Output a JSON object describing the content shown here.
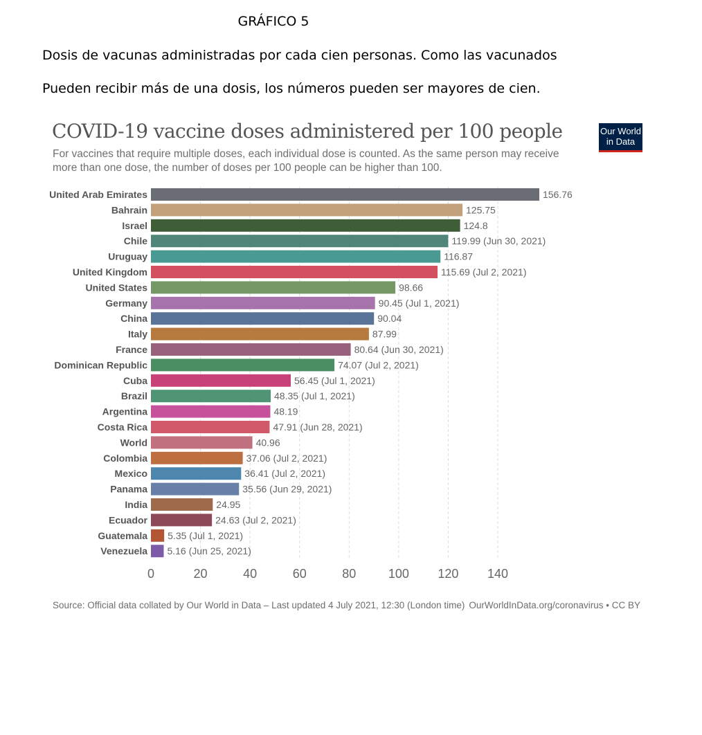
{
  "document": {
    "heading": "GRÁFICO 5",
    "line1": "Dosis de vacunas administradas por cada cien personas. Como las vacunados",
    "line2": "Pueden recibir más de una dosis, los números pueden ser mayores de cien."
  },
  "logo": {
    "line1": "Our World",
    "line2": "in Data"
  },
  "chart_data": {
    "type": "bar",
    "orientation": "horizontal",
    "title": "COVID-19 vaccine doses administered per 100 people",
    "subtitle": "For vaccines that require multiple doses, each individual dose is counted. As the same person may receive more than one dose, the number of doses per 100 people can be higher than 100.",
    "xlabel": "",
    "ylabel": "",
    "xlim": [
      0,
      160
    ],
    "xticks": [
      0,
      20,
      40,
      60,
      80,
      100,
      120,
      140
    ],
    "grid": "vertical dashed",
    "categories": [
      "United Arab Emirates",
      "Bahrain",
      "Israel",
      "Chile",
      "Uruguay",
      "United Kingdom",
      "United States",
      "Germany",
      "China",
      "Italy",
      "France",
      "Dominican Republic",
      "Cuba",
      "Brazil",
      "Argentina",
      "Costa Rica",
      "World",
      "Colombia",
      "Mexico",
      "Panama",
      "India",
      "Ecuador",
      "Guatemala",
      "Venezuela"
    ],
    "values": [
      156.76,
      125.75,
      124.8,
      119.99,
      116.87,
      115.69,
      98.66,
      90.45,
      90.04,
      87.99,
      80.64,
      74.07,
      56.45,
      48.35,
      48.19,
      47.91,
      40.96,
      37.06,
      36.41,
      35.56,
      24.95,
      24.63,
      5.35,
      5.16
    ],
    "value_labels": [
      "156.76",
      "125.75",
      "124.8",
      "119.99 (Jun 30, 2021)",
      "116.87",
      "115.69 (Jul 2, 2021)",
      "98.66",
      "90.45 (Jul 1, 2021)",
      "90.04",
      "87.99",
      "80.64 (Jun 30, 2021)",
      "74.07 (Jul 2, 2021)",
      "56.45 (Jul 1, 2021)",
      "48.35 (Jul 1, 2021)",
      "48.19",
      "47.91 (Jun 28, 2021)",
      "40.96",
      "37.06 (Jul 2, 2021)",
      "36.41 (Jul 2, 2021)",
      "35.56 (Jun 29, 2021)",
      "24.95",
      "24.63 (Jul 2, 2021)",
      "5.35 (Jul 1, 2021)",
      "5.16 (Jun 25, 2021)"
    ],
    "colors": [
      "#6b6d75",
      "#c2a07a",
      "#3f5e37",
      "#4f8679",
      "#4a9a94",
      "#d35060",
      "#769766",
      "#a674ab",
      "#5a7497",
      "#b67a3e",
      "#98627c",
      "#4a8e62",
      "#c84178",
      "#4f9575",
      "#c5529b",
      "#d05a6a",
      "#c0707e",
      "#bd6f40",
      "#4d87ad",
      "#687fa8",
      "#9d6b4b",
      "#8e4958",
      "#b25635",
      "#7d5ba6"
    ],
    "source": "Source: Official data collated by Our World in Data – Last updated 4 July 2021, 12:30 (London time)",
    "credit": "OurWorldInData.org/coronavirus • CC BY"
  }
}
